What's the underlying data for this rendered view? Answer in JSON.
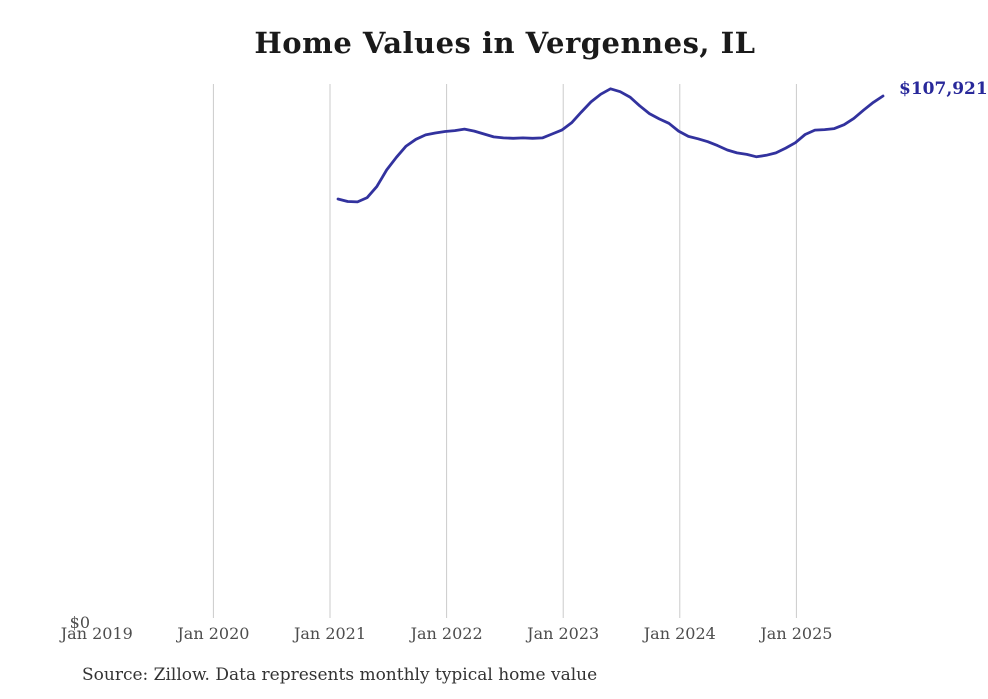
{
  "chart_data": {
    "type": "line",
    "title": "Home Values in Vergennes, IL",
    "xlabel": "",
    "ylabel": "",
    "y_zero_label": "$0",
    "ylim": [
      0,
      115000
    ],
    "grid": "vertical-only",
    "legend": "none",
    "x_ticks": [
      "Jan 2019",
      "Jan 2020",
      "Jan 2021",
      "Jan 2022",
      "Jan 2023",
      "Jan 2024",
      "Jan 2025"
    ],
    "annotation": {
      "text": "$107,921",
      "attached_to": "last-point"
    },
    "colors": {
      "line": "#32329e",
      "annotation": "#28289a",
      "gridline": "#cbcbcb",
      "axis_label": "#4d4d4d",
      "title": "#1a1a1a",
      "source": "#333333",
      "background": "#ffffff"
    },
    "series": [
      {
        "name": "Monthly typical home value",
        "start_month": "2021-01",
        "end_month": "2025-09",
        "months": [
          "2021-01",
          "2021-02",
          "2021-03",
          "2021-04",
          "2021-05",
          "2021-06",
          "2021-07",
          "2021-08",
          "2021-09",
          "2021-10",
          "2021-11",
          "2021-12",
          "2022-01",
          "2022-02",
          "2022-03",
          "2022-04",
          "2022-05",
          "2022-06",
          "2022-07",
          "2022-08",
          "2022-09",
          "2022-10",
          "2022-11",
          "2022-12",
          "2023-01",
          "2023-02",
          "2023-03",
          "2023-04",
          "2023-05",
          "2023-06",
          "2023-07",
          "2023-08",
          "2023-09",
          "2023-10",
          "2023-11",
          "2023-12",
          "2024-01",
          "2024-02",
          "2024-03",
          "2024-04",
          "2024-05",
          "2024-06",
          "2024-07",
          "2024-08",
          "2024-09",
          "2024-10",
          "2024-11",
          "2024-12",
          "2025-01",
          "2025-02",
          "2025-03",
          "2025-04",
          "2025-05",
          "2025-06",
          "2025-07",
          "2025-08",
          "2025-09"
        ],
        "values": [
          86700,
          86200,
          86100,
          87000,
          89300,
          92700,
          95300,
          97600,
          99000,
          99900,
          100300,
          100600,
          100800,
          101100,
          100700,
          100100,
          99500,
          99300,
          99200,
          99300,
          99200,
          99300,
          100100,
          100900,
          102400,
          104600,
          106700,
          108300,
          109400,
          108800,
          107700,
          105900,
          104300,
          103200,
          102300,
          100700,
          99600,
          99100,
          98500,
          97700,
          96800,
          96200,
          95900,
          95400,
          95700,
          96200,
          97200,
          98300,
          100000,
          100900,
          101000,
          101200,
          102000,
          103300,
          105000,
          106600,
          107921
        ],
        "last_value_label": "$107,921"
      }
    ]
  },
  "footer": {
    "source_note": "Source: Zillow. Data represents monthly typical home value"
  }
}
